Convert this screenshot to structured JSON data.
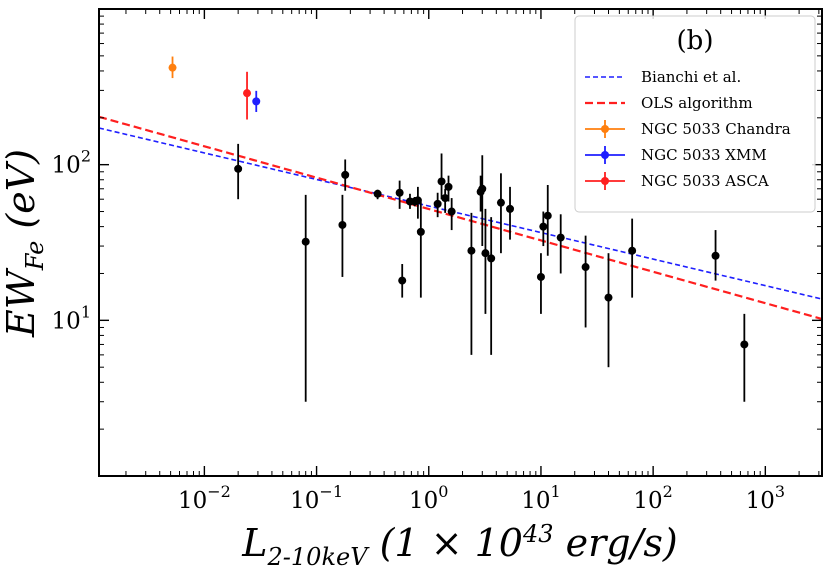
{
  "chart_data": {
    "type": "scatter",
    "panel_label": "(b)",
    "xlabel": "L_{2-10keV} (1 × 10^{43} erg/s)",
    "ylabel": "EW_{Fe} (eV)",
    "xscale": "log",
    "yscale": "log",
    "xlim": [
      0.00115,
      3200
    ],
    "ylim": [
      1.0,
      1000
    ],
    "grid": false,
    "legend_position": "top-right",
    "x_ticks": [
      {
        "value": 0.01,
        "base": "10",
        "exp": "−2"
      },
      {
        "value": 0.1,
        "base": "10",
        "exp": "−1"
      },
      {
        "value": 1,
        "base": "10",
        "exp": "0"
      },
      {
        "value": 10,
        "base": "10",
        "exp": "1"
      },
      {
        "value": 100,
        "base": "10",
        "exp": "2"
      },
      {
        "value": 1000,
        "base": "10",
        "exp": "3"
      }
    ],
    "y_ticks": [
      {
        "value": 10,
        "base": "10",
        "exp": "1"
      },
      {
        "value": 100,
        "base": "10",
        "exp": "2"
      }
    ],
    "fit_lines": [
      {
        "name": "Bianchi et al.",
        "color": "#1f1fff",
        "dash": "dashed",
        "points": [
          [
            0.00115,
            172
          ],
          [
            3200,
            13.7
          ]
        ]
      },
      {
        "name": "OLS algorithm",
        "color": "#ff1f1f",
        "dash": "dashed",
        "points": [
          [
            0.00115,
            203
          ],
          [
            3200,
            10.2
          ]
        ]
      }
    ],
    "series": [
      {
        "name": "NGC 5033 Chandra",
        "color": "#ff7f0e",
        "points": [
          {
            "x": 0.0052,
            "y": 420,
            "ylo": 360,
            "yhi": 495
          }
        ]
      },
      {
        "name": "NGC 5033 XMM",
        "color": "#1f1fff",
        "points": [
          {
            "x": 0.029,
            "y": 255,
            "ylo": 218,
            "yhi": 298
          }
        ]
      },
      {
        "name": "NGC 5033 ASCA",
        "color": "#ff1f1f",
        "points": [
          {
            "x": 0.024,
            "y": 288,
            "ylo": 195,
            "yhi": 395
          }
        ]
      },
      {
        "name": "",
        "color": "#000000",
        "points": [
          {
            "x": 0.02,
            "y": 94,
            "ylo": 60,
            "yhi": 136
          },
          {
            "x": 0.08,
            "y": 32,
            "ylo": 3,
            "yhi": 64
          },
          {
            "x": 0.17,
            "y": 41,
            "ylo": 19,
            "yhi": 64
          },
          {
            "x": 0.18,
            "y": 86,
            "ylo": 68,
            "yhi": 108
          },
          {
            "x": 0.35,
            "y": 65,
            "ylo": 60,
            "yhi": 69
          },
          {
            "x": 0.55,
            "y": 66,
            "ylo": 52,
            "yhi": 79
          },
          {
            "x": 0.58,
            "y": 18,
            "ylo": 14,
            "yhi": 23
          },
          {
            "x": 0.68,
            "y": 58,
            "ylo": 52,
            "yhi": 65
          },
          {
            "x": 0.75,
            "y": 58,
            "ylo": 54,
            "yhi": 62
          },
          {
            "x": 0.8,
            "y": 59,
            "ylo": 45,
            "yhi": 72
          },
          {
            "x": 0.85,
            "y": 37,
            "ylo": 14,
            "yhi": 58
          },
          {
            "x": 1.2,
            "y": 56,
            "ylo": 46,
            "yhi": 66
          },
          {
            "x": 1.3,
            "y": 78,
            "ylo": 60,
            "yhi": 118
          },
          {
            "x": 1.4,
            "y": 61,
            "ylo": 49,
            "yhi": 70
          },
          {
            "x": 1.5,
            "y": 72,
            "ylo": 58,
            "yhi": 85
          },
          {
            "x": 1.6,
            "y": 50,
            "ylo": 38,
            "yhi": 61
          },
          {
            "x": 2.4,
            "y": 28,
            "ylo": 6,
            "yhi": 49
          },
          {
            "x": 2.9,
            "y": 67,
            "ylo": 50,
            "yhi": 85
          },
          {
            "x": 3.0,
            "y": 70,
            "ylo": 30,
            "yhi": 115
          },
          {
            "x": 3.2,
            "y": 27,
            "ylo": 11,
            "yhi": 52
          },
          {
            "x": 3.6,
            "y": 25,
            "ylo": 6,
            "yhi": 46
          },
          {
            "x": 4.4,
            "y": 57,
            "ylo": 27,
            "yhi": 88
          },
          {
            "x": 5.3,
            "y": 52,
            "ylo": 33,
            "yhi": 72
          },
          {
            "x": 10,
            "y": 19,
            "ylo": 11,
            "yhi": 27
          },
          {
            "x": 10.5,
            "y": 40,
            "ylo": 30,
            "yhi": 50
          },
          {
            "x": 11.5,
            "y": 47,
            "ylo": 26,
            "yhi": 74
          },
          {
            "x": 15,
            "y": 34,
            "ylo": 20,
            "yhi": 48
          },
          {
            "x": 25,
            "y": 22,
            "ylo": 9,
            "yhi": 35
          },
          {
            "x": 40,
            "y": 14,
            "ylo": 5,
            "yhi": 27
          },
          {
            "x": 65,
            "y": 28,
            "ylo": 14,
            "yhi": 45
          },
          {
            "x": 360,
            "y": 26,
            "ylo": 18,
            "yhi": 38
          },
          {
            "x": 650,
            "y": 7,
            "ylo": 3,
            "yhi": 11
          }
        ]
      }
    ],
    "legend_entries": [
      {
        "label": "Bianchi et al.",
        "color": "#1f1fff",
        "kind": "dashed"
      },
      {
        "label": "OLS algorithm",
        "color": "#ff1f1f",
        "kind": "dashed"
      },
      {
        "label": "NGC 5033 Chandra",
        "color": "#ff7f0e",
        "kind": "errorbar"
      },
      {
        "label": "NGC 5033 XMM",
        "color": "#1f1fff",
        "kind": "errorbar"
      },
      {
        "label": "NGC 5033 ASCA",
        "color": "#ff1f1f",
        "kind": "errorbar"
      }
    ]
  }
}
